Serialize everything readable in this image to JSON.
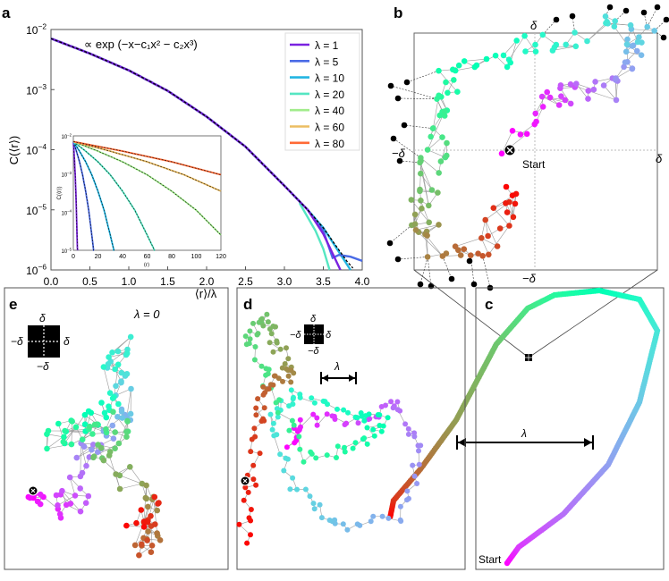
{
  "panel_labels": {
    "a": "a",
    "b": "b",
    "c": "c",
    "d": "d",
    "e": "e"
  },
  "chart_data": [
    {
      "type": "line",
      "panel": "a",
      "title": "",
      "xlabel": "⟨r⟩/λ",
      "ylabel": "C(⟨r⟩)",
      "xlim": [
        0,
        4
      ],
      "ylim": [
        1e-06,
        0.01
      ],
      "yscale": "log",
      "xticks": [
        "0.0",
        "0.5",
        "1.0",
        "1.5",
        "2.0",
        "2.5",
        "3.0",
        "3.5",
        "4.0"
      ],
      "yticks": [
        {
          "base": "10",
          "exp": "−2"
        },
        {
          "base": "10",
          "exp": "−3"
        },
        {
          "base": "10",
          "exp": "−4"
        },
        {
          "base": "10",
          "exp": "−5"
        },
        {
          "base": "10",
          "exp": "−6"
        }
      ],
      "annotation": "∝ exp (−x−c₁x² − c₂x³)",
      "legend_position": "top-right",
      "fit_log10": {
        "x": [
          0,
          0.5,
          1.0,
          1.5,
          2.0,
          2.5,
          3.0,
          3.3,
          3.5,
          3.8,
          3.9
        ],
        "log10y": [
          -2.15,
          -2.4,
          -2.68,
          -3.02,
          -3.45,
          -3.95,
          -4.6,
          -5.0,
          -5.3,
          -5.85,
          -6.0
        ]
      },
      "series": [
        {
          "name": "λ = 1",
          "color": "#7a22e0",
          "cutoff_x": 3.72,
          "tail": [
            [
              3.3,
              -5.0
            ],
            [
              3.5,
              -5.4
            ],
            [
              3.72,
              -6.0
            ]
          ]
        },
        {
          "name": "λ = 5",
          "color": "#4a6be6",
          "cutoff_x": 4.0,
          "tail": [
            [
              3.3,
              -5.0
            ],
            [
              3.5,
              -5.35
            ],
            [
              3.62,
              -5.8
            ],
            [
              3.7,
              -5.75
            ],
            [
              3.85,
              -5.78
            ],
            [
              4.0,
              -5.85
            ]
          ]
        },
        {
          "name": "λ = 10",
          "color": "#22b5e2",
          "cutoff_x": 3.85,
          "tail": [
            [
              3.5,
              -5.3
            ],
            [
              3.7,
              -5.7
            ],
            [
              3.85,
              -6.0
            ]
          ]
        },
        {
          "name": "λ = 20",
          "color": "#55e6c2",
          "cutoff_x": 3.58,
          "tail": [
            [
              3.2,
              -4.9
            ],
            [
              3.4,
              -5.35
            ],
            [
              3.5,
              -5.65
            ],
            [
              3.58,
              -6.0
            ]
          ]
        },
        {
          "name": "λ = 40",
          "color": "#a2ec8c",
          "cutoff_x": 3.0,
          "tail": []
        },
        {
          "name": "λ = 60",
          "color": "#ecbd62",
          "cutoff_x": 2.0,
          "tail": []
        },
        {
          "name": "λ = 80",
          "color": "#ff6a36",
          "cutoff_x": 1.5,
          "tail": []
        }
      ]
    },
    {
      "type": "line",
      "panel": "a-inset",
      "xlabel": "⟨r⟩",
      "ylabel": "C(⟨r⟩)",
      "xlim": [
        0,
        120
      ],
      "ylim": [
        1e-05,
        0.01
      ],
      "yscale": "log",
      "xticks": [
        "0",
        "20",
        "40",
        "60",
        "80",
        "100",
        "120"
      ],
      "yticks": [
        {
          "base": "10",
          "exp": "−2"
        },
        {
          "base": "10",
          "exp": "−3"
        },
        {
          "base": "10",
          "exp": "−4"
        },
        {
          "base": "10",
          "exp": "−5"
        }
      ],
      "lambdas": [
        1,
        5,
        10,
        20,
        40,
        60,
        80
      ]
    }
  ],
  "panel_b": {
    "delta": "δ",
    "neg_delta": "−δ",
    "start": "Start"
  },
  "panel_c": {
    "lambda": "λ",
    "start": "Start"
  },
  "panel_d": {
    "delta": "δ",
    "neg_delta": "−δ",
    "lambda": "λ"
  },
  "panel_e": {
    "delta": "δ",
    "neg_delta": "−δ",
    "lambda_eq": "λ = 0"
  },
  "colors": {
    "axis": "#555555",
    "link": "#999999"
  }
}
